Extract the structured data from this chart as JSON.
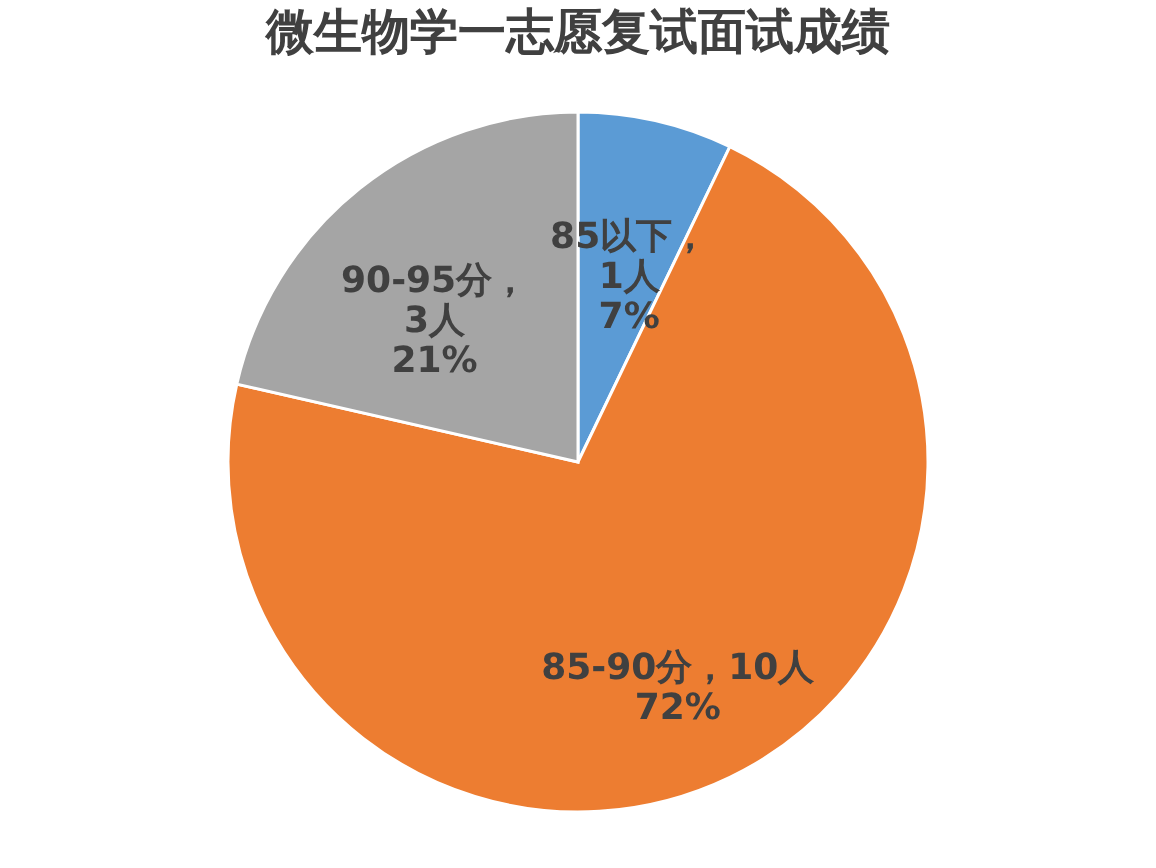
{
  "chart_data": {
    "type": "pie",
    "title": "微生物学一志愿复试面试成绩",
    "categories": [
      "85以下",
      "85-90分",
      "90-95分"
    ],
    "values": [
      1,
      10,
      3
    ],
    "colors": [
      "#5b9bd5",
      "#ed7d31",
      "#a5a5a5"
    ],
    "value_labels": [
      "，\n1人\n7%",
      "，10人\n72%",
      "，\n3人\n21%"
    ],
    "legend": false
  }
}
